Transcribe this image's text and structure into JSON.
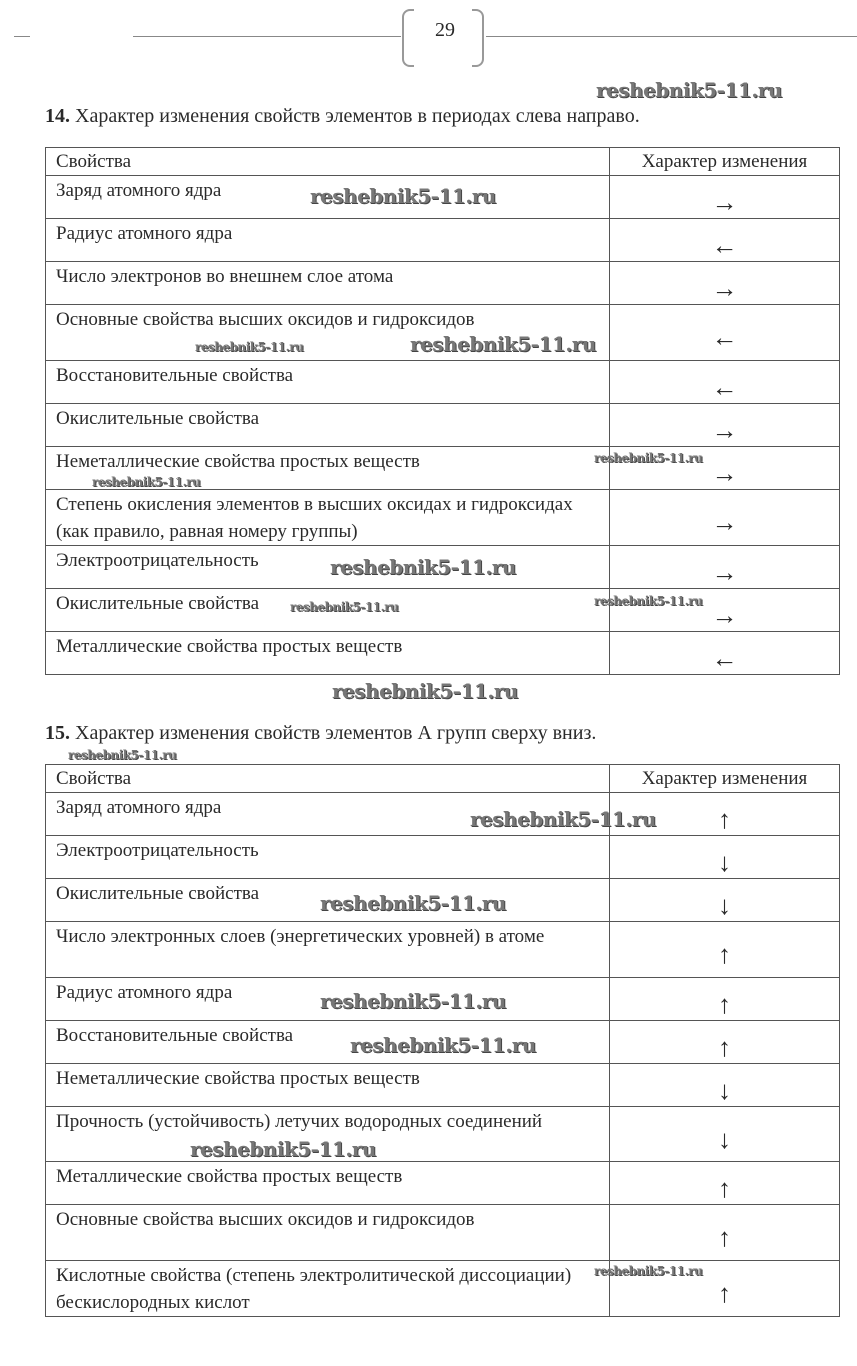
{
  "page_number": "29",
  "watermark": "reshebnik5-11.ru",
  "section14": {
    "number": "14.",
    "title": "Характер изменения свойств элементов в периодах слева направо.",
    "headers": [
      "Свойства",
      "Характер изменения"
    ],
    "rows": [
      {
        "property": "Заряд атомного ядра",
        "change": "→"
      },
      {
        "property": "Радиус атомного ядра",
        "change": "←"
      },
      {
        "property": "Число электронов во внешнем слое атома",
        "change": "→"
      },
      {
        "property": "Основные свойства высших оксидов и гидроксидов",
        "change": "←"
      },
      {
        "property": "Восстановительные свойства",
        "change": "←"
      },
      {
        "property": "Окислительные свойства",
        "change": "→"
      },
      {
        "property": "Неметаллические свойства простых веществ",
        "change": "→"
      },
      {
        "property": "Степень окисления элементов в высших оксидах и гидроксидах (как правило, равная номеру группы)",
        "change": "→"
      },
      {
        "property": "Электроотрицательность",
        "change": "→"
      },
      {
        "property": "Окислительные свойства",
        "change": "→"
      },
      {
        "property": "Металлические свойства простых веществ",
        "change": "←"
      }
    ]
  },
  "section15": {
    "number": "15.",
    "title": "Характер изменения свойств элементов А групп сверху вниз.",
    "headers": [
      "Свойства",
      "Характер изменения"
    ],
    "rows": [
      {
        "property": "Заряд атомного ядра",
        "change": "↑"
      },
      {
        "property": "Электроотрицательность",
        "change": "↓"
      },
      {
        "property": "Окислительные свойства",
        "change": "↓"
      },
      {
        "property": "Число электронных слоев (энергетических уровней) в атоме",
        "change": "↑"
      },
      {
        "property": "Радиус атомного ядра",
        "change": "↑"
      },
      {
        "property": "Восстановительные свойства",
        "change": "↑"
      },
      {
        "property": "Неметаллические свойства простых веществ",
        "change": "↓"
      },
      {
        "property": "Прочность (устойчивость) летучих водородных соединений",
        "change": "↓"
      },
      {
        "property": "Металлические свойства простых веществ",
        "change": "↑"
      },
      {
        "property": "Основные свойства высших оксидов и гидроксидов",
        "change": "↑"
      },
      {
        "property": "Кислотные свойства (степень электролитической диссоциации) бескислородных кислот",
        "change": "↑"
      }
    ]
  }
}
